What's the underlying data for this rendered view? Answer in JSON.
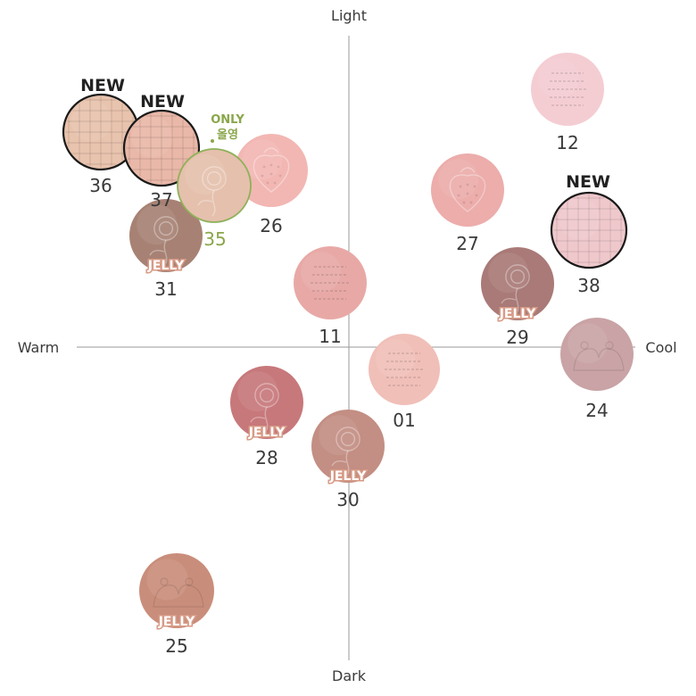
{
  "axes": {
    "top": "Light",
    "bottom": "Dark",
    "left": "Warm",
    "right": "Cool",
    "line_color": "#9a9a9a"
  },
  "badges": {
    "new": "NEW",
    "only": "ONLY",
    "only_sub": "올영",
    "jelly": "JELLY",
    "only_color": "#8aa64a",
    "jelly_bg": "#d79a86"
  },
  "shades": [
    {
      "number": "12",
      "color": "#f4cdd3",
      "pattern": "text",
      "new": false,
      "jelly": false,
      "only": false
    },
    {
      "number": "26",
      "color": "#f2b7b3",
      "pattern": "strawberry",
      "new": false,
      "jelly": false,
      "only": false
    },
    {
      "number": "27",
      "color": "#ecadab",
      "pattern": "strawberry",
      "new": false,
      "jelly": false,
      "only": false
    },
    {
      "number": "38",
      "color": "#efc8cc",
      "pattern": "waffle",
      "new": true,
      "jelly": false,
      "only": false
    },
    {
      "number": "11",
      "color": "#e8a9a6",
      "pattern": "text",
      "new": false,
      "jelly": false,
      "only": false
    },
    {
      "number": "29",
      "color": "#a97a77",
      "pattern": "rose",
      "new": false,
      "jelly": true,
      "only": false
    },
    {
      "number": "24",
      "color": "#c9a3a5",
      "pattern": "bears",
      "new": false,
      "jelly": false,
      "only": false
    },
    {
      "number": "01",
      "color": "#f0bfb8",
      "pattern": "text",
      "new": false,
      "jelly": false,
      "only": false
    },
    {
      "number": "28",
      "color": "#c7787b",
      "pattern": "rose",
      "new": false,
      "jelly": true,
      "only": false
    },
    {
      "number": "30",
      "color": "#c38e83",
      "pattern": "rose",
      "new": false,
      "jelly": true,
      "only": false
    },
    {
      "number": "25",
      "color": "#c98e7b",
      "pattern": "bears",
      "new": false,
      "jelly": true,
      "only": false
    },
    {
      "number": "31",
      "color": "#a78274",
      "pattern": "rose",
      "new": false,
      "jelly": true,
      "only": false
    },
    {
      "number": "36",
      "color": "#e8c3ad",
      "pattern": "waffle",
      "new": true,
      "jelly": false,
      "only": false
    },
    {
      "number": "37",
      "color": "#e9b8a8",
      "pattern": "waffle",
      "new": true,
      "jelly": false,
      "only": false
    },
    {
      "number": "35",
      "color": "#e5c0ad",
      "pattern": "rose",
      "new": false,
      "jelly": false,
      "only": true
    }
  ]
}
